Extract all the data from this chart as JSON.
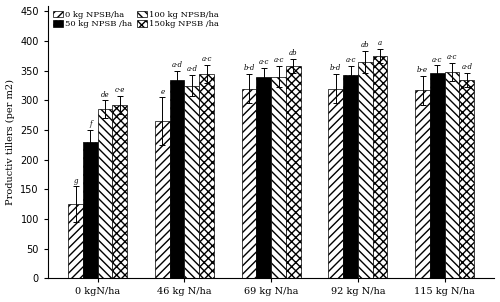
{
  "groups": [
    "0 kgN/ha",
    "46 kg N/ha",
    "69 kg N/ha",
    "92 kg N/ha",
    "115 kg N/ha"
  ],
  "series_labels": [
    "0 kg NPSB/ha",
    "50 kg NPSB /ha",
    "100 kg NPSB/ha",
    "150kg NPSB /ha"
  ],
  "values": [
    [
      125,
      230,
      285,
      293
    ],
    [
      265,
      335,
      325,
      345
    ],
    [
      320,
      340,
      340,
      358
    ],
    [
      320,
      343,
      365,
      375
    ],
    [
      317,
      347,
      348,
      335
    ]
  ],
  "errors": [
    [
      30,
      20,
      15,
      15
    ],
    [
      40,
      15,
      18,
      15
    ],
    [
      25,
      15,
      18,
      12
    ],
    [
      25,
      15,
      18,
      12
    ],
    [
      25,
      12,
      15,
      12
    ]
  ],
  "annotations": [
    [
      "g",
      "f",
      "de",
      "c-e"
    ],
    [
      "e",
      "a-d",
      "a-d",
      "a-c"
    ],
    [
      "b-d",
      "a-c",
      "a-c",
      "ab"
    ],
    [
      "b-d",
      "a-c",
      "ab",
      "a"
    ],
    [
      "b-e",
      "a-c",
      "a-c",
      "a-d"
    ]
  ],
  "ylabel": "Productiv tillers (per m2)",
  "ylim": [
    0,
    460
  ],
  "yticks": [
    0,
    50,
    100,
    150,
    200,
    250,
    300,
    350,
    400,
    450
  ],
  "bar_width": 0.17,
  "face_colors": [
    "white",
    "black",
    "white",
    "white"
  ],
  "hatch_patterns": [
    "////",
    "....",
    "\\\\\\\\",
    "xxxx"
  ],
  "background": "#ffffff"
}
